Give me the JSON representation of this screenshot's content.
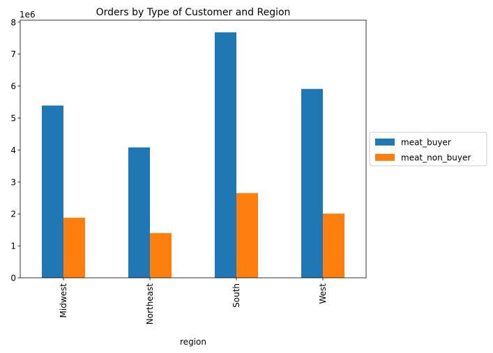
{
  "chart_data": {
    "type": "bar",
    "title": "Orders by Type of Customer and Region",
    "xlabel": "region",
    "ylabel": "",
    "y_multiplier_label": "1e6",
    "y_scale": 1000000,
    "categories": [
      "Midwest",
      "Northeast",
      "South",
      "West"
    ],
    "series": [
      {
        "name": "meat_buyer",
        "color": "#1f77b4",
        "values": [
          5390000,
          4080000,
          7680000,
          5910000
        ]
      },
      {
        "name": "meat_non_buyer",
        "color": "#ff7f0e",
        "values": [
          1880000,
          1400000,
          2650000,
          2010000
        ]
      }
    ],
    "ylim": [
      0,
      8060000
    ],
    "yticks": [
      0,
      1,
      2,
      3,
      4,
      5,
      6,
      7,
      8
    ],
    "ytick_labels": [
      "0",
      "1",
      "2",
      "3",
      "4",
      "5",
      "6",
      "7",
      "8"
    ],
    "grid": false,
    "legend_position": "outside-right"
  }
}
